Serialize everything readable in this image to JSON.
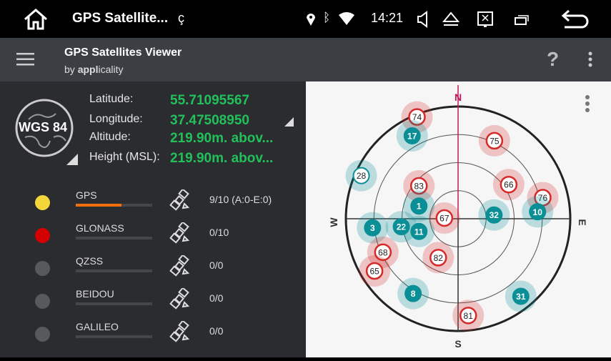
{
  "status_bar": {
    "app_title": "GPS Satellite...",
    "time": "14:21",
    "icons": [
      "home-icon",
      "location-icon",
      "bluetooth-icon",
      "wifi-icon",
      "volume-icon",
      "eject-icon",
      "screen-icon",
      "recents-icon",
      "back-icon"
    ]
  },
  "toolbar": {
    "title": "GPS Satellites Viewer",
    "subtitle_prefix": "by ",
    "subtitle_bold": "appl",
    "subtitle_rest": "icality",
    "icons": [
      "menu-icon",
      "help-icon",
      "more-icon"
    ]
  },
  "location": {
    "datum": "WGS 84",
    "latitude_label": "Latitude:",
    "latitude": "55.71095567",
    "longitude_label": "Longitude:",
    "longitude": "37.47508950",
    "altitude_label": "Altitude:",
    "altitude": "219.90m. abov...",
    "height_label": "Height (MSL):",
    "height": "219.90m. abov..."
  },
  "systems": [
    {
      "name": "GPS",
      "color": "#f5d63a",
      "count": "9/10 (A:0-E:0)",
      "progress": 0.6
    },
    {
      "name": "GLONASS",
      "color": "#d40000",
      "count": "0/10",
      "progress": 0
    },
    {
      "name": "QZSS",
      "color": "#58595c",
      "count": "0/0",
      "progress": 0
    },
    {
      "name": "BEIDOU",
      "color": "#58595c",
      "count": "0/0",
      "progress": 0
    },
    {
      "name": "GALILEO",
      "color": "#58595c",
      "count": "0/0",
      "progress": 0
    }
  ],
  "skyplot": {
    "north": "N",
    "south": "S",
    "east": "E",
    "west": "W",
    "colors": {
      "gps": "#0a8f96",
      "glonass": "#d42a2a",
      "axis_north": "#c2185b"
    },
    "satellites": [
      {
        "id": "74",
        "system": "glonass",
        "azimuth": 338,
        "elevation": 2
      },
      {
        "id": "17",
        "system": "gps",
        "azimuth": 331,
        "elevation": 14
      },
      {
        "id": "75",
        "system": "glonass",
        "azimuth": 25,
        "elevation": 21
      },
      {
        "id": "28",
        "system": "gps",
        "azimuth": 294,
        "elevation": 5,
        "used": false
      },
      {
        "id": "83",
        "system": "glonass",
        "azimuth": 310,
        "elevation": 49
      },
      {
        "id": "66",
        "system": "glonass",
        "azimuth": 56,
        "elevation": 41
      },
      {
        "id": "76",
        "system": "glonass",
        "azimuth": 76,
        "elevation": 20
      },
      {
        "id": "1",
        "system": "gps",
        "azimuth": 288,
        "elevation": 57
      },
      {
        "id": "10",
        "system": "gps",
        "azimuth": 85,
        "elevation": 26
      },
      {
        "id": "67",
        "system": "glonass",
        "azimuth": 273,
        "elevation": 79
      },
      {
        "id": "32",
        "system": "gps",
        "azimuth": 84,
        "elevation": 61
      },
      {
        "id": "3",
        "system": "gps",
        "azimuth": 264,
        "elevation": 21
      },
      {
        "id": "22",
        "system": "gps",
        "azimuth": 262,
        "elevation": 44
      },
      {
        "id": "11",
        "system": "gps",
        "azimuth": 252,
        "elevation": 57
      },
      {
        "id": "68",
        "system": "glonass",
        "azimuth": 246,
        "elevation": 24
      },
      {
        "id": "82",
        "system": "glonass",
        "azimuth": 207,
        "elevation": 55
      },
      {
        "id": "65",
        "system": "glonass",
        "azimuth": 238,
        "elevation": 11
      },
      {
        "id": "8",
        "system": "gps",
        "azimuth": 211,
        "elevation": 20
      },
      {
        "id": "31",
        "system": "gps",
        "azimuth": 141,
        "elevation": 10
      },
      {
        "id": "81",
        "system": "glonass",
        "azimuth": 174,
        "elevation": 12
      }
    ]
  }
}
